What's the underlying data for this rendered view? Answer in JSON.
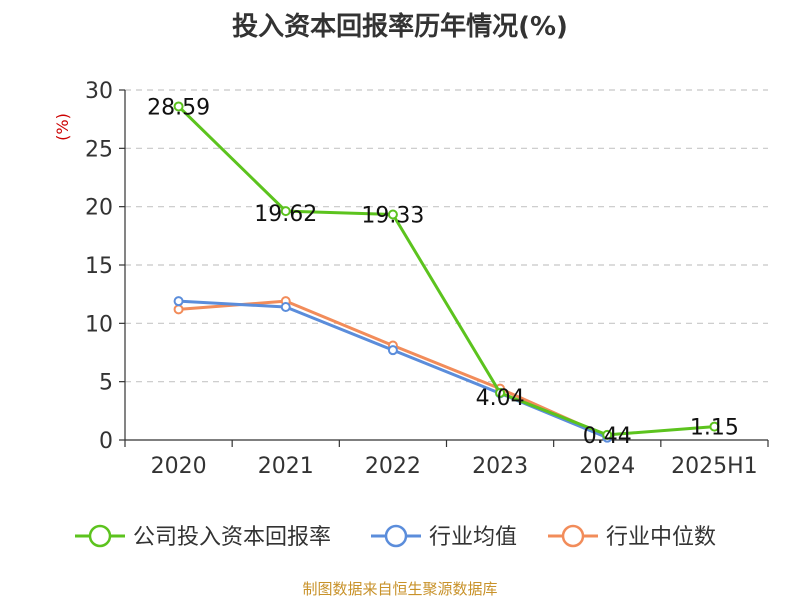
{
  "chart_data": {
    "type": "line",
    "title": "投入资本回报率历年情况(%)",
    "ylabel": "(%)",
    "xlabel": "",
    "categories": [
      "2020",
      "2021",
      "2022",
      "2023",
      "2024",
      "2025H1"
    ],
    "ylim": [
      0,
      30
    ],
    "yticks": [
      0,
      5,
      10,
      15,
      20,
      25,
      30
    ],
    "grid": true,
    "legend_position": "bottom",
    "series": [
      {
        "name": "公司投入资本回报率",
        "color": "#5cc31e",
        "values": [
          28.59,
          19.62,
          19.33,
          4.04,
          0.44,
          1.15
        ],
        "labels": [
          "28.59",
          "19.62",
          "19.33",
          "4.04",
          "0.44",
          "1.15"
        ]
      },
      {
        "name": "行业均值",
        "color": "#5b8ddb",
        "values": [
          11.9,
          11.4,
          7.7,
          4.0,
          0.2,
          null
        ]
      },
      {
        "name": "行业中位数",
        "color": "#f28c5a",
        "values": [
          11.2,
          11.9,
          8.1,
          4.4,
          0.3,
          null
        ]
      }
    ]
  },
  "source_note": "制图数据来自恒生聚源数据库"
}
